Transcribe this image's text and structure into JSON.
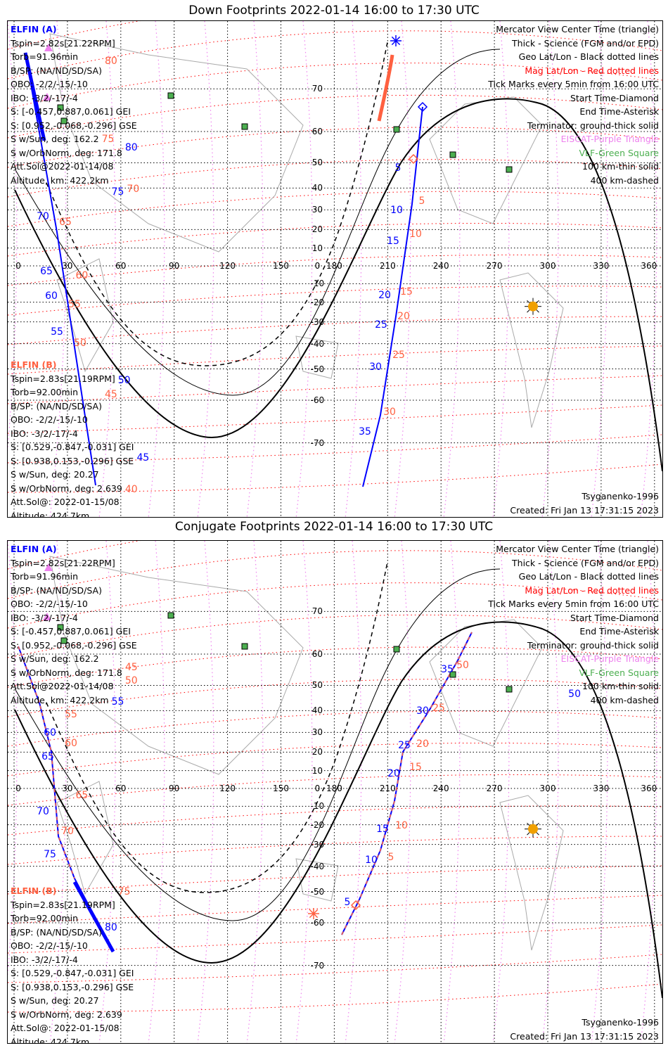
{
  "panels": [
    {
      "title": "Down Footprints 2022-01-14 16:00 to 17:30 UTC",
      "track_labels_blue": [
        "80",
        "75",
        "70",
        "65",
        "60",
        "55",
        "50",
        "45",
        "5",
        "10",
        "15",
        "20",
        "25",
        "30",
        "35"
      ],
      "track_labels_red": [
        "80",
        "75",
        "70",
        "65",
        "60",
        "55",
        "50",
        "45",
        "40",
        "5",
        "10",
        "15",
        "20",
        "25",
        "30"
      ]
    },
    {
      "title": "Conjugate Footprints 2022-01-14 16:00 to 17:30 UTC",
      "track_labels_blue": [
        "55",
        "60",
        "65",
        "70",
        "75",
        "80",
        "5",
        "10",
        "15",
        "20",
        "25",
        "30",
        "35",
        "50"
      ],
      "track_labels_red": [
        "45",
        "50",
        "55",
        "60",
        "65",
        "70",
        "75",
        "5",
        "10",
        "15",
        "20",
        "25",
        "50"
      ]
    }
  ],
  "elfin_a": {
    "name": "ELFIN (A)",
    "lines": [
      "Tspin=2.82s[21.22RPM]",
      "Torb=91.96min",
      "B/SP: (NA/ND/SD/SA)",
      "OBO: -2/2/-15/-10",
      "IBO: -3/2/-17/-4",
      "S: [-0.457,0.887,0.061] GEI",
      "S: [0.952,-0.068,-0.296] GSE",
      "S w/Sun, deg: 162.2",
      "S w/OrbNorm, deg: 171.8",
      "Att.Sol@2022-01-14/08",
      "Altitude, km: 422.2km"
    ]
  },
  "elfin_b": {
    "name": "ELFIN (B)",
    "lines": [
      "Tspin=2.83s[21.19RPM]",
      "Torb=92.00min",
      "B/SP: (NA/ND/SD/SA)",
      "OBO: -2/2/-15/-10",
      "IBO: -3/2/-17/-4",
      "S: [0.529,-0.847,-0.031] GEI",
      "S: [0.938,0.153,-0.296] GSE",
      "S w/Sun, deg: 20.27",
      "S w/OrbNorm, deg: 2.639",
      "Att.Sol@: 2022-01-15/08",
      "Altitude: 424.7km"
    ]
  },
  "legend": [
    {
      "text": "Mercator View Center Time (triangle)",
      "color": "#000000"
    },
    {
      "text": "Thick - Science (FGM and/or EPD)",
      "color": "#000000"
    },
    {
      "text": "Geo Lat/Lon - Black dotted lines",
      "color": "#000000"
    },
    {
      "text": "Mag Lat/Lon - Red dotted lines",
      "color": "#ff0000"
    },
    {
      "text": "Tick Marks every 5min from 16:00 UTC",
      "color": "#000000"
    },
    {
      "text": "Start Time-Diamond",
      "color": "#000000"
    },
    {
      "text": "End Time-Asterisk",
      "color": "#000000"
    },
    {
      "text": "Terminator: ground-thick solid",
      "color": "#000000"
    },
    {
      "text": "EISCAT-Purple Triangle",
      "color": "#ee82ee"
    },
    {
      "text": "VLF-Green Square",
      "color": "#4caf50"
    },
    {
      "text": "100 km-thin solid",
      "color": "#000000"
    },
    {
      "text": "400 km-dashed",
      "color": "#000000"
    }
  ],
  "model": "Tsyganenko-1996",
  "created": "Created: Fri Jan 13 17:31:15 2023",
  "lon_ticks": [
    "0",
    "30",
    "60",
    "90",
    "120",
    "150",
    "180",
    "210",
    "240",
    "270",
    "300",
    "330",
    "360"
  ],
  "lat_ticks": [
    "70",
    "60",
    "50",
    "40",
    "30",
    "20",
    "10",
    "0",
    "-10",
    "-20",
    "-30",
    "-40",
    "-50",
    "-60",
    "-70"
  ],
  "colors": {
    "elfin_a": "#0000ff",
    "elfin_b": "#ff6040",
    "sun": "#f0a000",
    "vlf": "#4caf50"
  }
}
